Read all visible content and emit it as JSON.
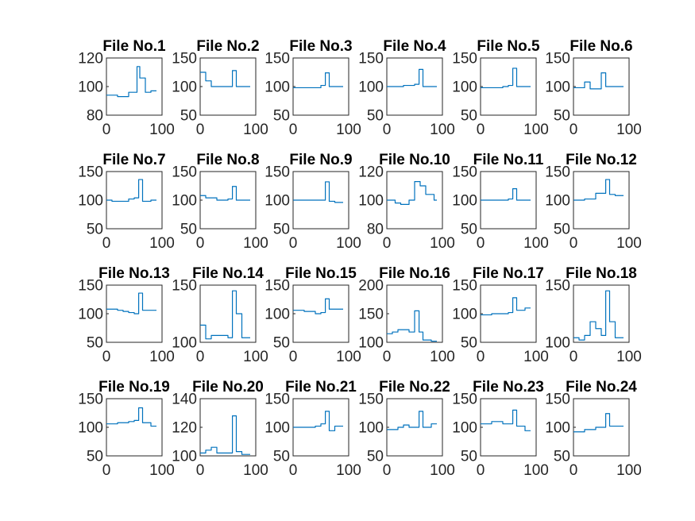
{
  "colors": {
    "line": "#0072BD",
    "axes": "#262626",
    "background": "#ffffff"
  },
  "chart_data": [
    {
      "type": "line",
      "title": "File No.1",
      "xlim": [
        0,
        100
      ],
      "ylim": [
        80,
        120
      ],
      "yticks": [
        "80",
        "100",
        "120"
      ],
      "xticks": [
        "0",
        "100"
      ],
      "x": [
        0,
        20,
        20,
        40,
        40,
        50,
        50,
        55,
        55,
        60,
        60,
        70,
        70,
        80,
        80,
        90
      ],
      "values": [
        94,
        94,
        93,
        93,
        96,
        96,
        96,
        96,
        114,
        114,
        106,
        106,
        96,
        96,
        97,
        97
      ]
    },
    {
      "type": "line",
      "title": "File No.2",
      "xlim": [
        0,
        100
      ],
      "ylim": [
        50,
        150
      ],
      "yticks": [
        "50",
        "100",
        "150"
      ],
      "xticks": [
        "0",
        "100"
      ],
      "x": [
        0,
        10,
        10,
        20,
        20,
        50,
        50,
        58,
        58,
        65,
        65,
        90
      ],
      "values": [
        125,
        125,
        110,
        110,
        100,
        100,
        100,
        100,
        128,
        128,
        100,
        100
      ]
    },
    {
      "type": "line",
      "title": "File No.3",
      "xlim": [
        0,
        100
      ],
      "ylim": [
        50,
        150
      ],
      "yticks": [
        "50",
        "100",
        "150"
      ],
      "xticks": [
        "0",
        "100"
      ],
      "x": [
        0,
        50,
        50,
        58,
        58,
        65,
        65,
        90
      ],
      "values": [
        98,
        98,
        102,
        102,
        124,
        124,
        100,
        100
      ]
    },
    {
      "type": "line",
      "title": "File No.4",
      "xlim": [
        0,
        100
      ],
      "ylim": [
        50,
        150
      ],
      "yticks": [
        "50",
        "100",
        "150"
      ],
      "xticks": [
        "0",
        "100"
      ],
      "x": [
        0,
        30,
        30,
        50,
        50,
        58,
        58,
        65,
        65,
        90
      ],
      "values": [
        100,
        100,
        102,
        102,
        104,
        104,
        130,
        130,
        100,
        100
      ]
    },
    {
      "type": "line",
      "title": "File No.5",
      "xlim": [
        0,
        100
      ],
      "ylim": [
        50,
        150
      ],
      "yticks": [
        "50",
        "100",
        "150"
      ],
      "xticks": [
        "0",
        "100"
      ],
      "x": [
        0,
        40,
        40,
        50,
        50,
        58,
        58,
        65,
        65,
        90
      ],
      "values": [
        98,
        98,
        100,
        100,
        102,
        102,
        132,
        132,
        100,
        100
      ]
    },
    {
      "type": "line",
      "title": "File No.6",
      "xlim": [
        0,
        100
      ],
      "ylim": [
        50,
        150
      ],
      "yticks": [
        "50",
        "100",
        "150"
      ],
      "xticks": [
        "0",
        "100"
      ],
      "x": [
        0,
        20,
        20,
        30,
        30,
        40,
        40,
        50,
        50,
        58,
        58,
        65,
        65,
        90
      ],
      "values": [
        98,
        98,
        108,
        108,
        96,
        96,
        96,
        96,
        124,
        124,
        100,
        100,
        100,
        100
      ]
    },
    {
      "type": "line",
      "title": "File No.7",
      "xlim": [
        0,
        100
      ],
      "ylim": [
        50,
        150
      ],
      "yticks": [
        "50",
        "100",
        "150"
      ],
      "xticks": [
        "0",
        "100"
      ],
      "x": [
        0,
        10,
        10,
        40,
        40,
        50,
        50,
        58,
        58,
        65,
        65,
        80,
        80,
        90
      ],
      "values": [
        100,
        100,
        98,
        98,
        102,
        102,
        104,
        104,
        136,
        136,
        98,
        98,
        100,
        100
      ]
    },
    {
      "type": "line",
      "title": "File No.8",
      "xlim": [
        0,
        100
      ],
      "ylim": [
        50,
        150
      ],
      "yticks": [
        "50",
        "100",
        "150"
      ],
      "xticks": [
        "0",
        "100"
      ],
      "x": [
        0,
        10,
        10,
        30,
        30,
        50,
        50,
        58,
        58,
        65,
        65,
        90
      ],
      "values": [
        108,
        108,
        104,
        104,
        100,
        100,
        102,
        102,
        124,
        124,
        100,
        100
      ]
    },
    {
      "type": "line",
      "title": "File No.9",
      "xlim": [
        0,
        100
      ],
      "ylim": [
        50,
        150
      ],
      "yticks": [
        "50",
        "100",
        "150"
      ],
      "xticks": [
        "0",
        "100"
      ],
      "x": [
        0,
        40,
        40,
        50,
        50,
        58,
        58,
        65,
        65,
        75,
        75,
        90
      ],
      "values": [
        100,
        100,
        100,
        100,
        100,
        100,
        132,
        132,
        98,
        98,
        96,
        96
      ]
    },
    {
      "type": "line",
      "title": "File No.10",
      "xlim": [
        0,
        100
      ],
      "ylim": [
        80,
        120
      ],
      "yticks": [
        "80",
        "100",
        "120"
      ],
      "xticks": [
        "0",
        "100"
      ],
      "x": [
        0,
        15,
        15,
        25,
        25,
        40,
        40,
        50,
        50,
        60,
        60,
        70,
        70,
        85,
        85,
        90
      ],
      "values": [
        100,
        100,
        98,
        98,
        97,
        97,
        100,
        100,
        113,
        113,
        110,
        110,
        104,
        104,
        100,
        100
      ]
    },
    {
      "type": "line",
      "title": "File No.11",
      "xlim": [
        0,
        100
      ],
      "ylim": [
        50,
        150
      ],
      "yticks": [
        "50",
        "100",
        "150"
      ],
      "xticks": [
        "0",
        "100"
      ],
      "x": [
        0,
        50,
        50,
        58,
        58,
        65,
        65,
        90
      ],
      "values": [
        100,
        100,
        102,
        102,
        120,
        120,
        100,
        100
      ]
    },
    {
      "type": "line",
      "title": "File No.12",
      "xlim": [
        0,
        100
      ],
      "ylim": [
        50,
        150
      ],
      "yticks": [
        "50",
        "100",
        "150"
      ],
      "xticks": [
        "0",
        "100"
      ],
      "x": [
        0,
        20,
        20,
        40,
        40,
        58,
        58,
        65,
        65,
        75,
        75,
        90
      ],
      "values": [
        100,
        100,
        102,
        102,
        112,
        112,
        136,
        136,
        110,
        110,
        108,
        108
      ]
    },
    {
      "type": "line",
      "title": "File No.13",
      "xlim": [
        0,
        100
      ],
      "ylim": [
        50,
        150
      ],
      "yticks": [
        "50",
        "100",
        "150"
      ],
      "xticks": [
        "0",
        "100"
      ],
      "x": [
        0,
        20,
        20,
        30,
        30,
        40,
        40,
        50,
        50,
        58,
        58,
        65,
        65,
        90
      ],
      "values": [
        108,
        108,
        106,
        106,
        104,
        104,
        102,
        102,
        100,
        100,
        136,
        136,
        106,
        106
      ]
    },
    {
      "type": "line",
      "title": "File No.14",
      "xlim": [
        0,
        100
      ],
      "ylim": [
        100,
        150
      ],
      "yticks": [
        "100",
        "150"
      ],
      "xticks": [
        "0",
        "100"
      ],
      "x": [
        0,
        10,
        10,
        20,
        20,
        50,
        50,
        58,
        58,
        65,
        65,
        75,
        75,
        90
      ],
      "values": [
        115,
        115,
        103,
        103,
        106,
        106,
        104,
        104,
        145,
        145,
        125,
        125,
        104,
        104
      ]
    },
    {
      "type": "line",
      "title": "File No.15",
      "xlim": [
        0,
        100
      ],
      "ylim": [
        50,
        150
      ],
      "yticks": [
        "50",
        "100",
        "150"
      ],
      "xticks": [
        "0",
        "100"
      ],
      "x": [
        0,
        20,
        20,
        40,
        40,
        50,
        50,
        58,
        58,
        65,
        65,
        90
      ],
      "values": [
        106,
        106,
        104,
        104,
        100,
        100,
        102,
        102,
        126,
        126,
        108,
        108
      ]
    },
    {
      "type": "line",
      "title": "File No.16",
      "xlim": [
        0,
        100
      ],
      "ylim": [
        100,
        200
      ],
      "yticks": [
        "100",
        "150",
        "200"
      ],
      "xticks": [
        "0",
        "100"
      ],
      "x": [
        0,
        10,
        10,
        20,
        20,
        40,
        40,
        50,
        50,
        58,
        58,
        65,
        65,
        80,
        80,
        90
      ],
      "values": [
        115,
        115,
        118,
        118,
        122,
        122,
        118,
        118,
        155,
        155,
        118,
        118,
        104,
        104,
        102,
        102
      ]
    },
    {
      "type": "line",
      "title": "File No.17",
      "xlim": [
        0,
        100
      ],
      "ylim": [
        50,
        150
      ],
      "yticks": [
        "50",
        "100",
        "150"
      ],
      "xticks": [
        "0",
        "100"
      ],
      "x": [
        0,
        20,
        20,
        50,
        50,
        58,
        58,
        65,
        65,
        80,
        80,
        90
      ],
      "values": [
        98,
        98,
        100,
        100,
        102,
        102,
        128,
        128,
        106,
        106,
        110,
        110
      ]
    },
    {
      "type": "line",
      "title": "File No.18",
      "xlim": [
        0,
        100
      ],
      "ylim": [
        100,
        150
      ],
      "yticks": [
        "100",
        "150"
      ],
      "xticks": [
        "0",
        "100"
      ],
      "x": [
        0,
        10,
        10,
        20,
        20,
        30,
        30,
        40,
        40,
        50,
        50,
        58,
        58,
        65,
        65,
        75,
        75,
        90
      ],
      "values": [
        104,
        104,
        102,
        102,
        106,
        106,
        118,
        118,
        112,
        112,
        106,
        106,
        145,
        145,
        118,
        118,
        104,
        104
      ]
    },
    {
      "type": "line",
      "title": "File No.19",
      "xlim": [
        0,
        100
      ],
      "ylim": [
        50,
        150
      ],
      "yticks": [
        "50",
        "100",
        "150"
      ],
      "xticks": [
        "0",
        "100"
      ],
      "x": [
        0,
        20,
        20,
        40,
        40,
        50,
        50,
        58,
        58,
        65,
        65,
        80,
        80,
        90
      ],
      "values": [
        106,
        106,
        108,
        108,
        110,
        110,
        112,
        112,
        134,
        134,
        108,
        108,
        102,
        102
      ]
    },
    {
      "type": "line",
      "title": "File No.20",
      "xlim": [
        0,
        100
      ],
      "ylim": [
        100,
        140
      ],
      "yticks": [
        "100",
        "120",
        "140"
      ],
      "xticks": [
        "0",
        "100"
      ],
      "x": [
        0,
        10,
        10,
        20,
        20,
        30,
        30,
        50,
        50,
        58,
        58,
        65,
        65,
        75,
        75,
        90
      ],
      "values": [
        102,
        102,
        104,
        104,
        106,
        106,
        102,
        102,
        102,
        102,
        128,
        128,
        103,
        103,
        101,
        101
      ]
    },
    {
      "type": "line",
      "title": "File No.21",
      "xlim": [
        0,
        100
      ],
      "ylim": [
        50,
        150
      ],
      "yticks": [
        "50",
        "100",
        "150"
      ],
      "xticks": [
        "0",
        "100"
      ],
      "x": [
        0,
        40,
        40,
        50,
        50,
        58,
        58,
        65,
        65,
        75,
        75,
        90
      ],
      "values": [
        100,
        100,
        102,
        102,
        106,
        106,
        128,
        128,
        94,
        94,
        102,
        102
      ]
    },
    {
      "type": "line",
      "title": "File No.22",
      "xlim": [
        0,
        100
      ],
      "ylim": [
        50,
        150
      ],
      "yticks": [
        "50",
        "100",
        "150"
      ],
      "xticks": [
        "0",
        "100"
      ],
      "x": [
        0,
        20,
        20,
        30,
        30,
        40,
        40,
        50,
        50,
        58,
        58,
        65,
        65,
        80,
        80,
        90
      ],
      "values": [
        96,
        96,
        100,
        100,
        104,
        104,
        100,
        100,
        100,
        100,
        128,
        128,
        100,
        100,
        106,
        106
      ]
    },
    {
      "type": "line",
      "title": "File No.23",
      "xlim": [
        0,
        100
      ],
      "ylim": [
        50,
        150
      ],
      "yticks": [
        "50",
        "100",
        "150"
      ],
      "xticks": [
        "0",
        "100"
      ],
      "x": [
        0,
        20,
        20,
        40,
        40,
        50,
        50,
        58,
        58,
        65,
        65,
        80,
        80,
        90
      ],
      "values": [
        106,
        106,
        110,
        110,
        106,
        106,
        106,
        106,
        130,
        130,
        102,
        102,
        94,
        94
      ]
    },
    {
      "type": "line",
      "title": "File No.24",
      "xlim": [
        0,
        100
      ],
      "ylim": [
        50,
        150
      ],
      "yticks": [
        "50",
        "100",
        "150"
      ],
      "xticks": [
        "0",
        "100"
      ],
      "x": [
        0,
        20,
        20,
        40,
        40,
        50,
        50,
        58,
        58,
        65,
        65,
        90
      ],
      "values": [
        92,
        92,
        96,
        96,
        100,
        100,
        100,
        100,
        124,
        124,
        102,
        102
      ]
    }
  ]
}
